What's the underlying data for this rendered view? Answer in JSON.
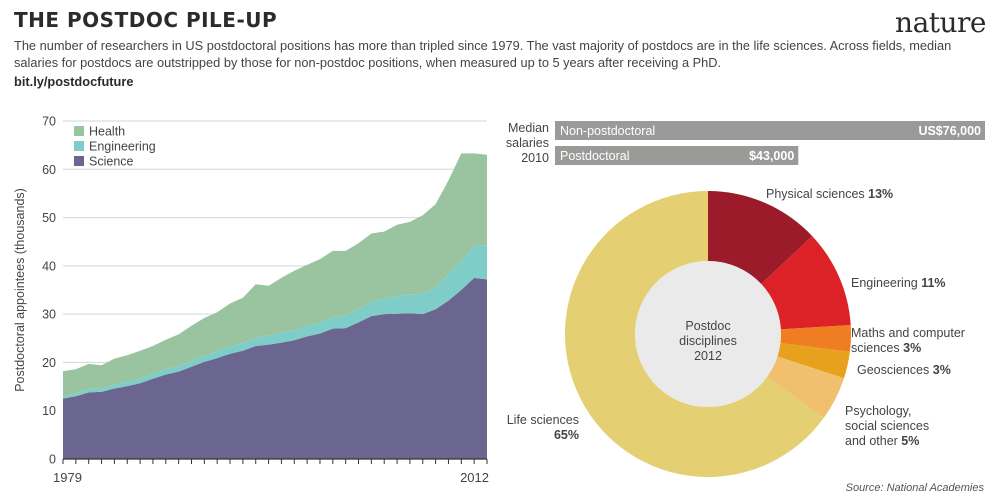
{
  "title": "THE POSTDOC PILE-UP",
  "brand": "nature",
  "subtitle": "The number of researchers in US postdoctoral positions has more than tripled since 1979. The vast majority of postdocs are in the life sciences. Across fields, median salaries for postdocs are outstripped by those for non-postdoc positions, when measured up to 5 years after receiving a PhD.",
  "link": "bit.ly/postdocfuture",
  "source": "Source: National Academies",
  "colors": {
    "science": "#6b668f",
    "engineering": "#7ecdc8",
    "health": "#99c49f",
    "bar": "#9a9a98",
    "physical": "#9b1b2b",
    "engineering_slice": "#dc2227",
    "maths": "#ef7d22",
    "geo": "#e8a11c",
    "psych": "#f0c06e",
    "life": "#e4cf72",
    "hole": "#eaeaea"
  },
  "chart_data": [
    {
      "type": "area",
      "stacked": true,
      "title": "",
      "ylabel": "Postdoctoral appointees (thousands)",
      "xlabel": "",
      "ylim": [
        0,
        70
      ],
      "yticks": [
        0,
        10,
        20,
        30,
        40,
        50,
        60,
        70
      ],
      "x_tick_labels": [
        "1979",
        "2012"
      ],
      "x": [
        1979,
        1980,
        1981,
        1982,
        1983,
        1984,
        1985,
        1986,
        1987,
        1988,
        1989,
        1990,
        1991,
        1992,
        1993,
        1994,
        1995,
        1996,
        1997,
        1998,
        1999,
        2000,
        2001,
        2002,
        2003,
        2004,
        2005,
        2006,
        2007,
        2008,
        2009,
        2010,
        2011,
        2012
      ],
      "legend": [
        "Health",
        "Engineering",
        "Science"
      ],
      "series": [
        {
          "name": "Science",
          "values": [
            12.5,
            13,
            13.8,
            13.9,
            14.6,
            15.1,
            15.7,
            16.6,
            17.5,
            18.1,
            19.1,
            20.1,
            20.9,
            21.8,
            22.4,
            23.4,
            23.7,
            24.1,
            24.6,
            25.4,
            26,
            27,
            27.1,
            28.3,
            29.6,
            30,
            30.1,
            30.2,
            30,
            31,
            32.8,
            35,
            37.5,
            37.2
          ]
        },
        {
          "name": "Engineering",
          "values": [
            0.5,
            0.6,
            0.7,
            0.7,
            0.8,
            0.9,
            1,
            1,
            1.1,
            1.2,
            1.2,
            1.3,
            1.4,
            1.5,
            1.6,
            1.7,
            1.9,
            2,
            2.1,
            2.2,
            2.3,
            2.4,
            2.6,
            2.8,
            3,
            3.3,
            3.6,
            3.9,
            4.2,
            4.6,
            5.4,
            6,
            6.6,
            7
          ]
        },
        {
          "name": "Health",
          "values": [
            5.2,
            5,
            5.2,
            4.8,
            5.4,
            5.5,
            5.7,
            5.8,
            6.1,
            6.5,
            7.3,
            7.8,
            8.1,
            8.9,
            9.4,
            11.1,
            10.3,
            11.4,
            12.3,
            12.6,
            13.1,
            13.7,
            13.4,
            13.6,
            14.1,
            13.8,
            14.8,
            15,
            16.3,
            17.2,
            19.5,
            22.3,
            19.2,
            18.8
          ]
        }
      ]
    },
    {
      "type": "bar",
      "orientation": "horizontal",
      "title": "Median salaries 2010",
      "title_lines": [
        "Median",
        "salaries",
        "2010"
      ],
      "categories": [
        "Non-postdoctoral",
        "Postdoctoral"
      ],
      "values": [
        76000,
        43000
      ],
      "value_labels": [
        "US$76,000",
        "$43,000"
      ]
    },
    {
      "type": "pie",
      "donut": true,
      "title": "Postdoc disciplines 2012",
      "center_lines": [
        "Postdoc",
        "disciplines",
        "2012"
      ],
      "slices": [
        {
          "name": "Physical sciences",
          "value": 13,
          "label_lines": [
            "Physical sciences"
          ],
          "pct": "13%"
        },
        {
          "name": "Engineering",
          "value": 11,
          "label_lines": [
            "Engineering"
          ],
          "pct": "11%"
        },
        {
          "name": "Maths and computer sciences",
          "value": 3,
          "label_lines": [
            "Maths and computer",
            "sciences"
          ],
          "pct": "3%"
        },
        {
          "name": "Geosciences",
          "value": 3,
          "label_lines": [
            "Geosciences"
          ],
          "pct": "3%"
        },
        {
          "name": "Psychology, social sciences and other",
          "value": 5,
          "label_lines": [
            "Psychology,",
            "social sciences",
            "and other"
          ],
          "pct": "5%"
        },
        {
          "name": "Life sciences",
          "value": 65,
          "label_lines": [
            "Life sciences"
          ],
          "pct": "65%"
        }
      ]
    }
  ]
}
